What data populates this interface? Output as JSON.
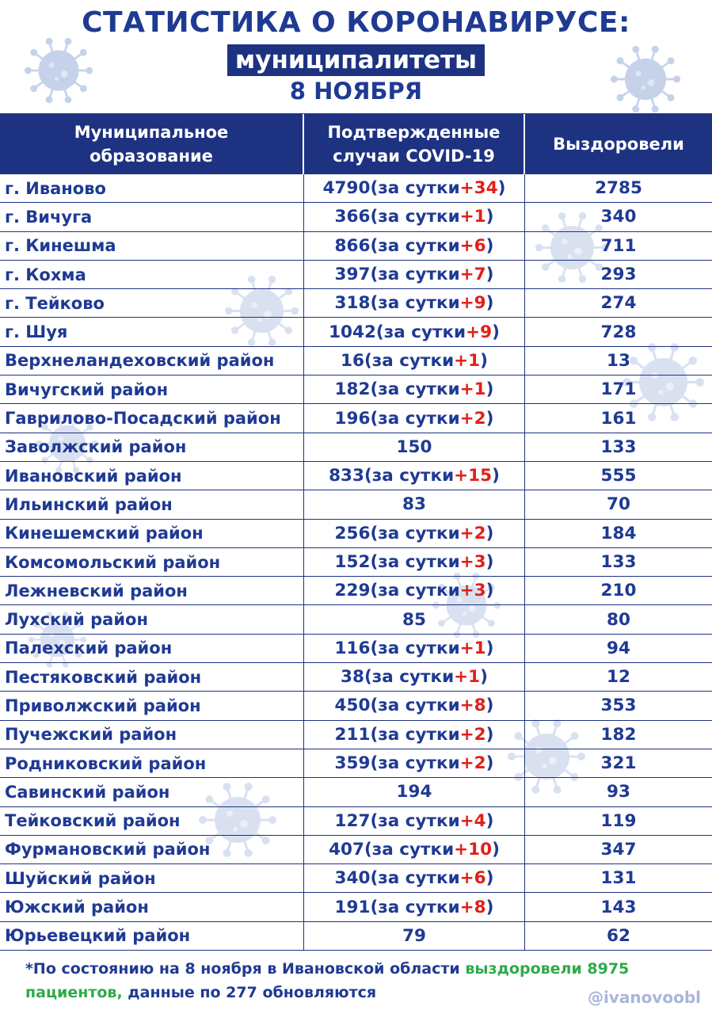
{
  "header": {
    "title": "СТАТИСТИКА О КОРОНАВИРУСЕ:",
    "subtitle": "муниципалитеты",
    "date": "8 НОЯБРЯ"
  },
  "table": {
    "columns": [
      "Муниципальное\nобразование",
      "Подтвержденные\nслучаи COVID-19",
      "Выздоровели"
    ],
    "rows": [
      {
        "name": "г. Иваново",
        "cases": "4790",
        "daily": "+34",
        "recovered": "2785"
      },
      {
        "name": "г. Вичуга",
        "cases": "366",
        "daily": "+1",
        "recovered": "340"
      },
      {
        "name": "г. Кинешма",
        "cases": "866",
        "daily": "+6",
        "recovered": "711"
      },
      {
        "name": "г. Кохма",
        "cases": "397",
        "daily": "+7",
        "recovered": "293"
      },
      {
        "name": "г. Тейково",
        "cases": "318",
        "daily": "+9",
        "recovered": "274",
        "tight": true
      },
      {
        "name": "г. Шуя",
        "cases": "1042",
        "daily": "+9",
        "recovered": "728"
      },
      {
        "name": "Верхнеландеховский район",
        "cases": "16",
        "daily": "+1",
        "recovered": "13"
      },
      {
        "name": "Вичугский район",
        "cases": "182",
        "daily": "+1",
        "recovered": "171"
      },
      {
        "name": "Гаврилово-Посадский район",
        "cases": "196",
        "daily": "+2",
        "recovered": "161"
      },
      {
        "name": "Заволжский район",
        "cases": "150",
        "daily": "",
        "recovered": "133"
      },
      {
        "name": "Ивановский район",
        "cases": "833",
        "daily": "+15",
        "recovered": "555"
      },
      {
        "name": "Ильинский район",
        "cases": "83",
        "daily": "",
        "recovered": "70"
      },
      {
        "name": "Кинешемский район",
        "cases": "256",
        "daily": "+2",
        "recovered": "184"
      },
      {
        "name": "Комсомольский район",
        "cases": "152",
        "daily": "+3",
        "recovered": "133"
      },
      {
        "name": "Лежневский район",
        "cases": "229",
        "daily": "+3",
        "recovered": "210"
      },
      {
        "name": "Лухский район",
        "cases": "85",
        "daily": "",
        "recovered": "80"
      },
      {
        "name": "Палехский район",
        "cases": "116",
        "daily": "+1",
        "recovered": "94"
      },
      {
        "name": "Пестяковский район",
        "cases": "38",
        "daily": "+1",
        "recovered": "12"
      },
      {
        "name": "Приволжский район",
        "cases": "450",
        "daily": "+8",
        "recovered": "353"
      },
      {
        "name": "Пучежский район",
        "cases": "211",
        "daily": "+2",
        "recovered": "182"
      },
      {
        "name": "Родниковский район",
        "cases": "359",
        "daily": "+2",
        "recovered": "321"
      },
      {
        "name": "Савинский район",
        "cases": "194",
        "daily": "",
        "recovered": "93"
      },
      {
        "name": "Тейковский район",
        "cases": "127",
        "daily": "+4",
        "recovered": "119"
      },
      {
        "name": "Фурмановский район",
        "cases": "407",
        "daily": "+10",
        "recovered": "347"
      },
      {
        "name": "Шуйский район",
        "cases": "340",
        "daily": "+6",
        "recovered": "131"
      },
      {
        "name": "Южский район",
        "cases": "191",
        "daily": "+8",
        "recovered": "143"
      },
      {
        "name": "Юрьевецкий район",
        "cases": "79",
        "daily": "",
        "recovered": "62"
      }
    ],
    "daily_label": "за сутки"
  },
  "footnote": {
    "part1": "*По состоянию на 8 ноября в Ивановской области ",
    "highlight": "выздоровели 8975 пациентов,",
    "part2": " данные по 277 обновляются"
  },
  "handle": "@ivanovoobl",
  "colors": {
    "primary": "#1e3282",
    "text": "#1f3a93",
    "increase": "#e0201b",
    "recovered_highlight": "#2eaa4a",
    "virus_decor": "#c5d2ea"
  },
  "icons": [
    "virus-icon"
  ]
}
